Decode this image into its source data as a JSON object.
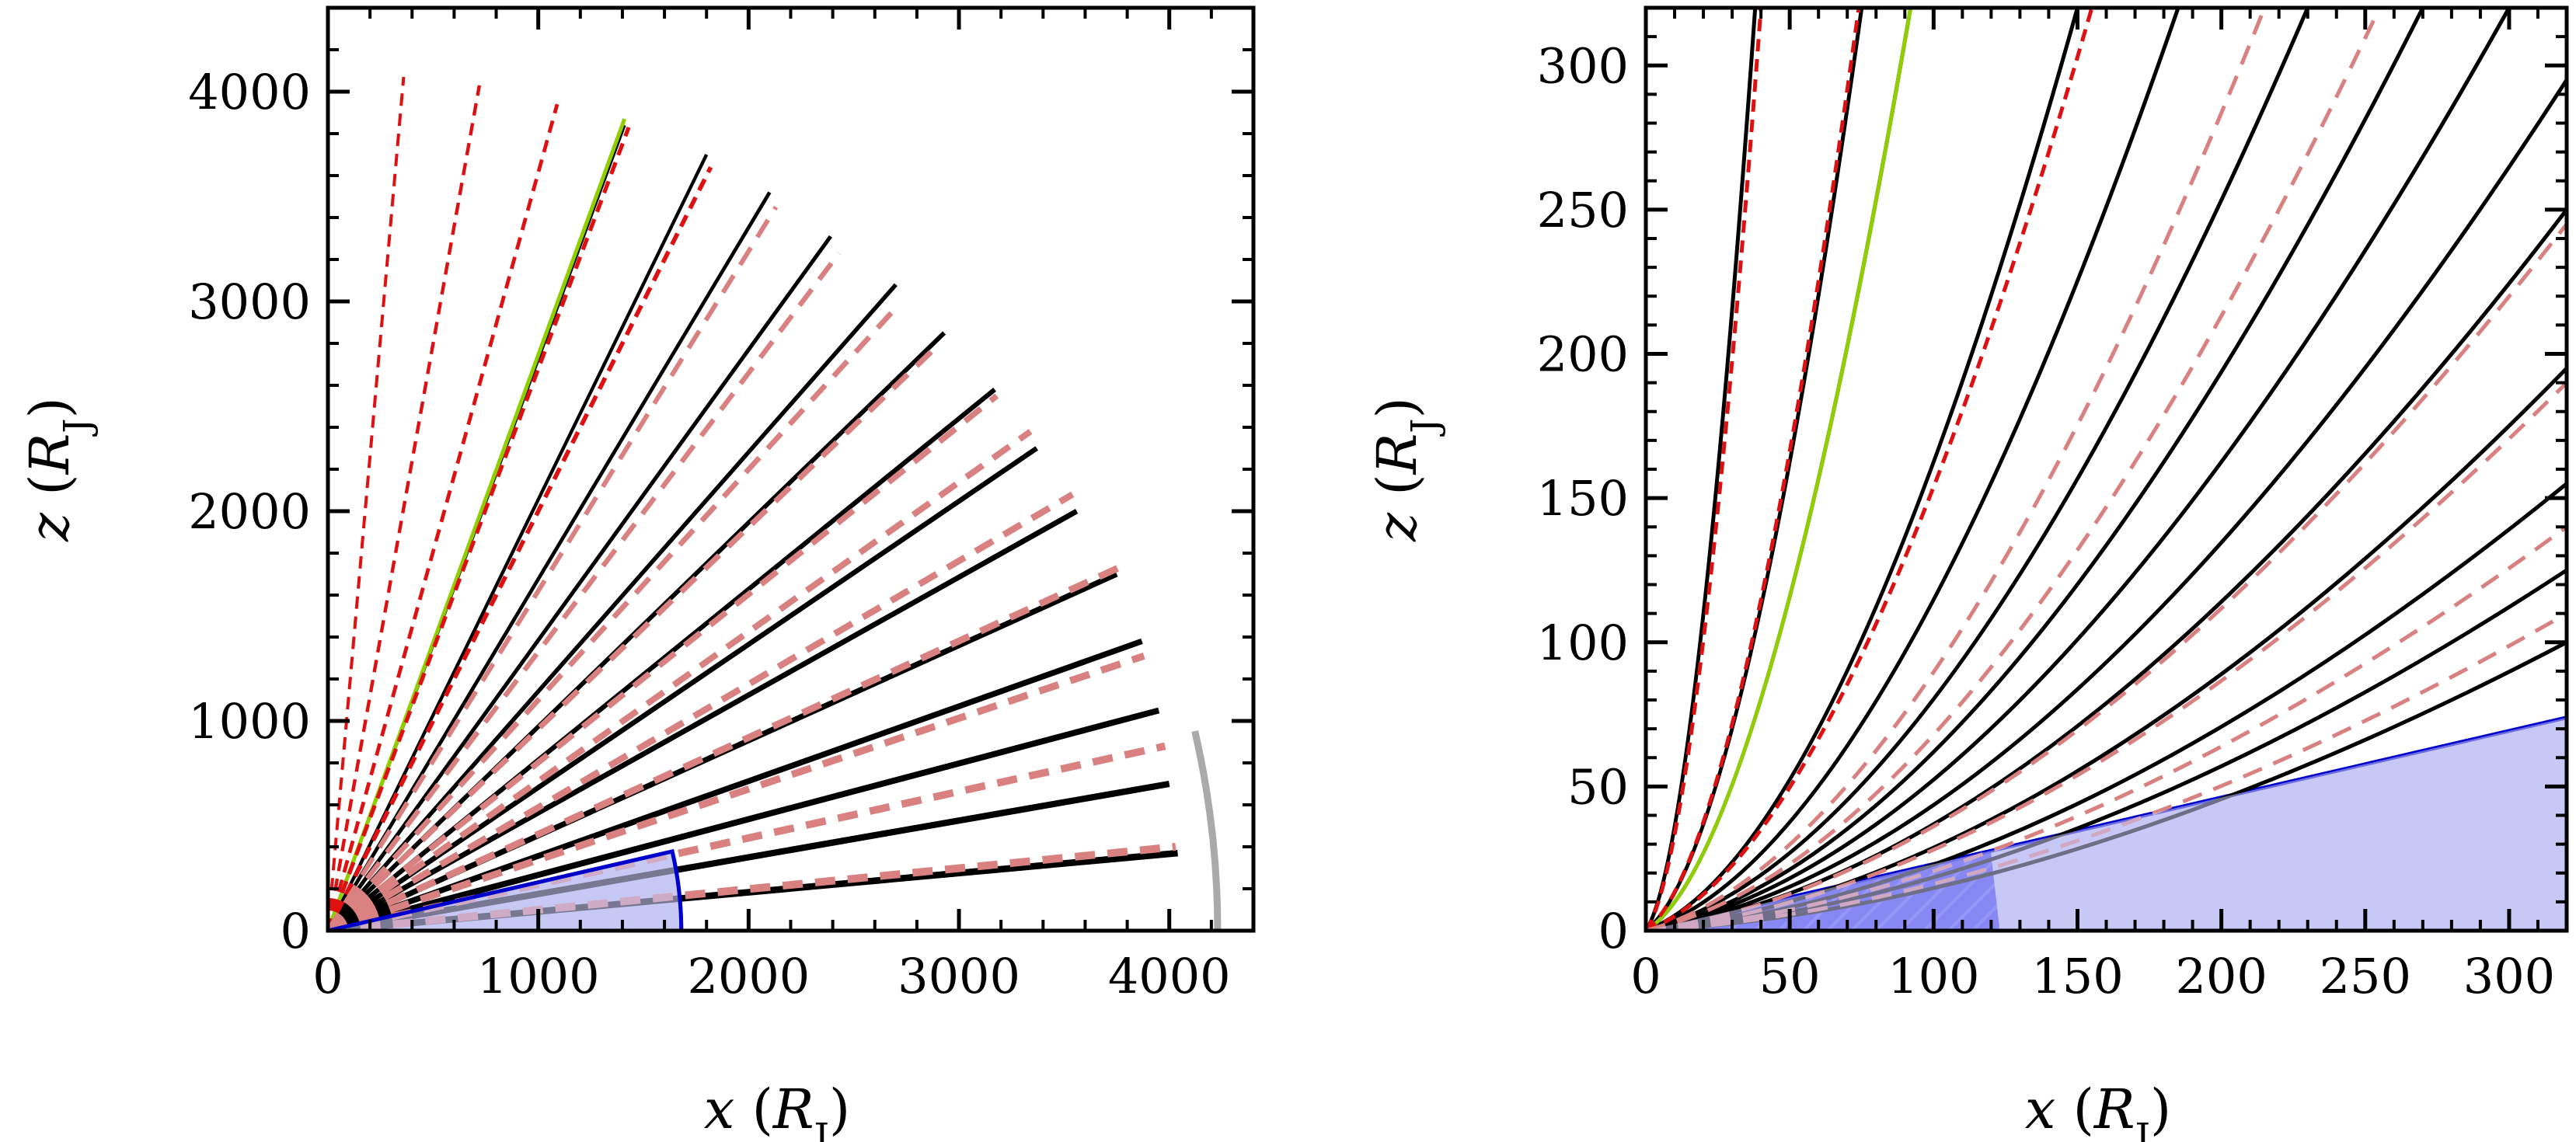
{
  "colors": {
    "field_line": "#000000",
    "model_dashed_dark": "#dd1111",
    "model_dashed_light": "#d98080",
    "highlight_line": "#8fce00",
    "region_outline": "#0000cc",
    "region_fill_light": "#c8c8f5",
    "region_fill_dark": "#3a3af2",
    "outer_arc": "#aaaaaa"
  },
  "chart_data": [
    {
      "type": "line",
      "panel": "left",
      "xlabel": "x",
      "ylabel": "z",
      "unit_symbol": "R",
      "unit_subscript": "J",
      "xlim": [
        0,
        4400
      ],
      "ylim": [
        0,
        4400
      ],
      "x_ticks": [
        0,
        1000,
        2000,
        3000,
        4000
      ],
      "y_ticks": [
        0,
        1000,
        2000,
        3000,
        4000
      ],
      "x_tick_labels": [
        "0",
        "1000",
        "2000",
        "3000",
        "4000"
      ],
      "y_tick_labels": [
        "0",
        "1000",
        "2000",
        "3000",
        "4000"
      ],
      "field_lines": {
        "description": "solid black lines from origin",
        "endpoints": [
          [
            1410,
            3840
          ],
          [
            1800,
            3700
          ],
          [
            2100,
            3520
          ],
          [
            2390,
            3310
          ],
          [
            2700,
            3080
          ],
          [
            2930,
            2850
          ],
          [
            3170,
            2580
          ],
          [
            3370,
            2300
          ],
          [
            3560,
            2000
          ],
          [
            3750,
            1700
          ],
          [
            3870,
            1380
          ],
          [
            3950,
            1050
          ],
          [
            4000,
            700
          ],
          [
            4040,
            370
          ]
        ]
      },
      "model_lines": {
        "description": "dashed model lines from origin",
        "endpoints": [
          [
            360,
            4070
          ],
          [
            720,
            4030
          ],
          [
            1090,
            3940
          ],
          [
            1430,
            3830
          ],
          [
            1820,
            3640
          ],
          [
            2130,
            3450
          ],
          [
            2430,
            3230
          ],
          [
            2710,
            2980
          ],
          [
            2910,
            2800
          ],
          [
            3180,
            2550
          ],
          [
            3340,
            2380
          ],
          [
            3540,
            2080
          ],
          [
            3780,
            1740
          ],
          [
            3880,
            1310
          ],
          [
            3980,
            880
          ],
          [
            4030,
            400
          ]
        ]
      },
      "highlight_line_endpoint": [
        1410,
        3870
      ],
      "inner_region": {
        "radius": 1680,
        "angle_deg": 13
      },
      "outer_arc": {
        "radius": 4230,
        "from_deg": 0,
        "to_deg": 13
      }
    },
    {
      "type": "line",
      "panel": "right",
      "xlabel": "x",
      "ylabel": "z",
      "unit_symbol": "R",
      "unit_subscript": "J",
      "xlim": [
        0,
        320
      ],
      "ylim": [
        0,
        320
      ],
      "x_ticks": [
        0,
        50,
        100,
        150,
        200,
        250,
        300
      ],
      "y_ticks": [
        0,
        50,
        100,
        150,
        200,
        250,
        300
      ],
      "x_tick_labels": [
        "0",
        "50",
        "100",
        "150",
        "200",
        "250",
        "300"
      ],
      "y_tick_labels": [
        "0",
        "50",
        "100",
        "150",
        "200",
        "250",
        "300"
      ],
      "field_lines": {
        "description": "solid black curves (bending near origin)",
        "endpoints": [
          [
            38,
            320
          ],
          [
            75,
            320
          ],
          [
            92,
            320
          ],
          [
            150,
            320
          ],
          [
            185,
            320
          ],
          [
            230,
            320
          ],
          [
            270,
            320
          ],
          [
            300,
            320
          ],
          [
            320,
            295
          ],
          [
            320,
            250
          ],
          [
            320,
            195
          ],
          [
            320,
            155
          ],
          [
            320,
            125
          ],
          [
            320,
            100
          ]
        ]
      },
      "model_lines": {
        "description": "dashed model curves",
        "endpoints": [
          [
            40,
            320
          ],
          [
            74,
            320
          ],
          [
            155,
            320
          ],
          [
            215,
            320
          ],
          [
            255,
            320
          ],
          [
            320,
            245
          ],
          [
            320,
            190
          ],
          [
            320,
            140
          ],
          [
            320,
            110
          ]
        ]
      },
      "highlight_line_endpoint": [
        92,
        320
      ],
      "inner_region": {
        "radius": 123,
        "angle_deg": 13
      },
      "outer_arc": null
    }
  ]
}
